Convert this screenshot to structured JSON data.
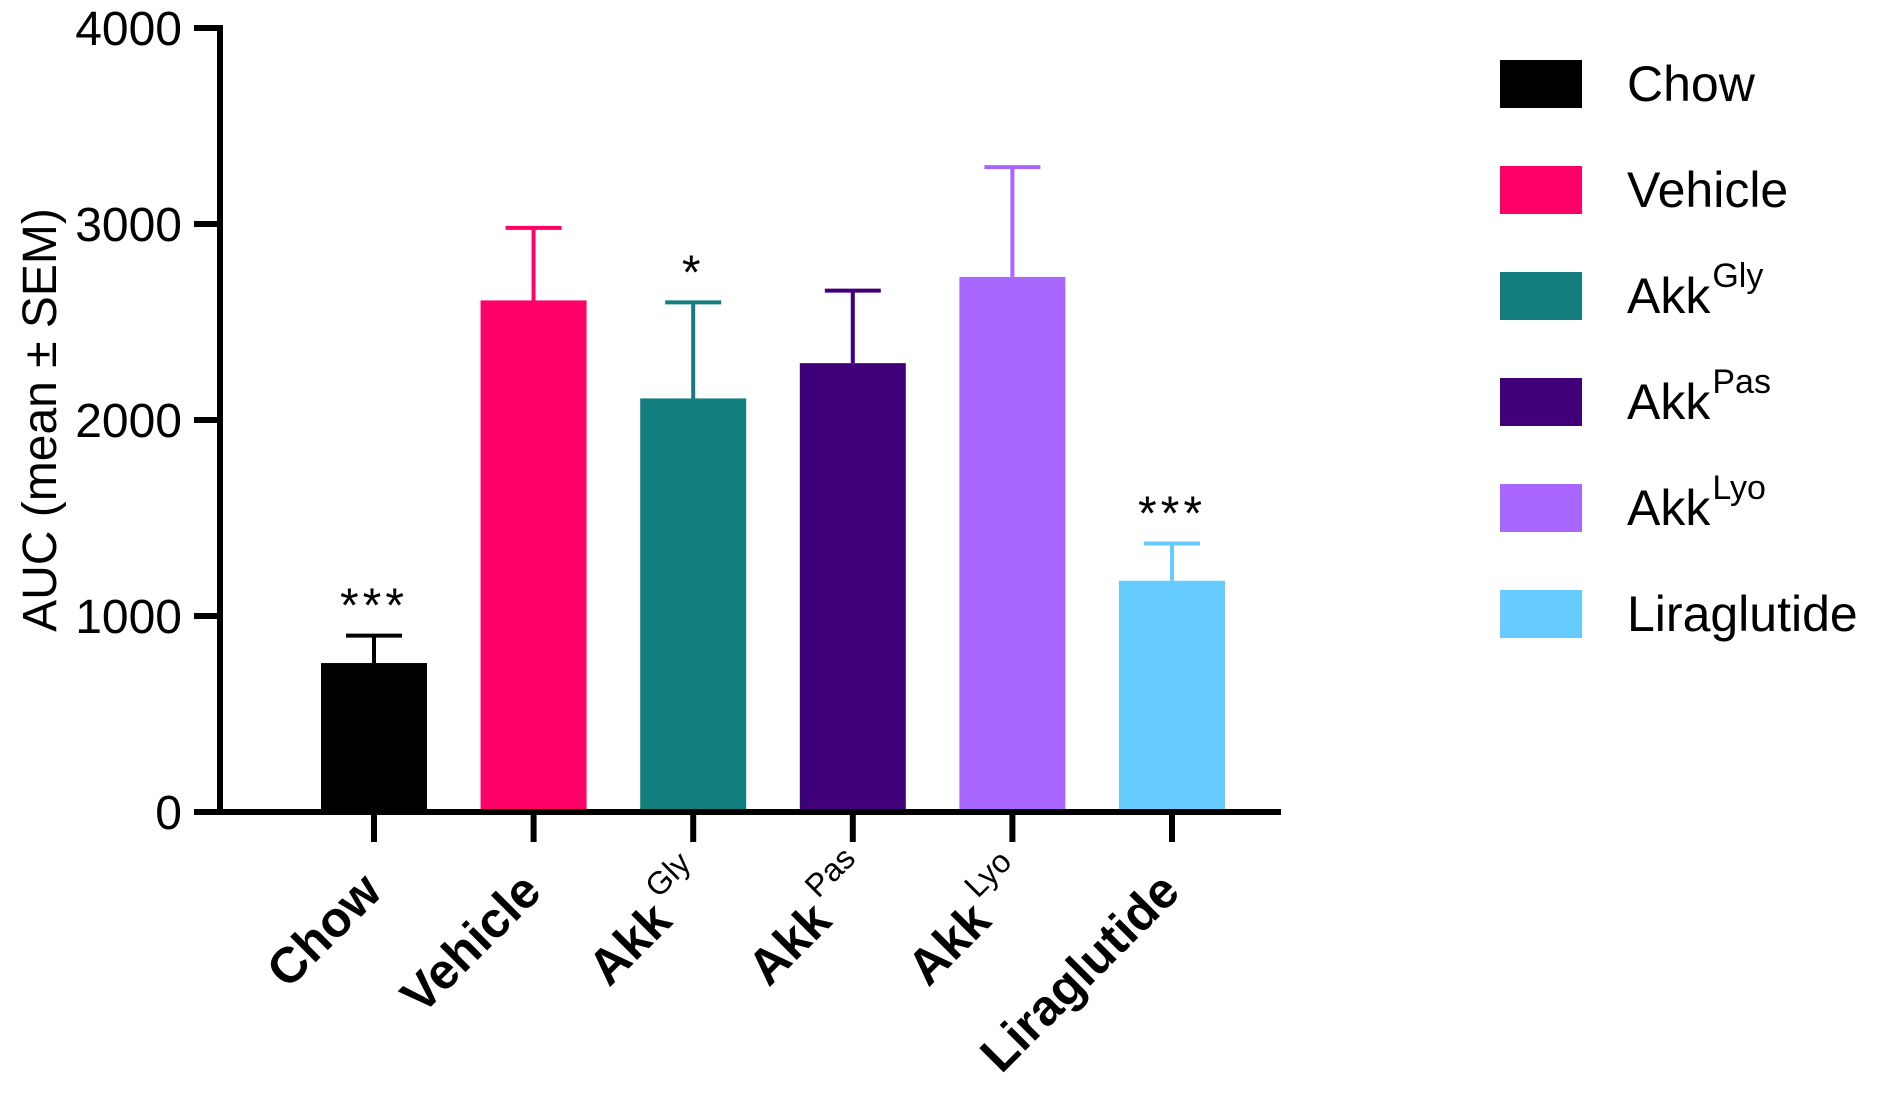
{
  "chart_data": {
    "type": "bar",
    "categories": [
      "Chow",
      "Vehicle",
      "Akk",
      "Akk",
      "Akk",
      "Liraglutide"
    ],
    "category_superscripts": [
      "",
      "",
      "Gly",
      "Pas",
      "Lyo",
      ""
    ],
    "values": [
      760,
      2610,
      2110,
      2290,
      2730,
      1180
    ],
    "error_upper": [
      900,
      2980,
      2600,
      2660,
      3290,
      1370
    ],
    "significance": [
      "***",
      "",
      "*",
      "",
      "",
      "***"
    ],
    "colors": [
      "#000000",
      "#FF0066",
      "#127E7E",
      "#3F007A",
      "#A966FF",
      "#66CCFF"
    ],
    "title": "",
    "xlabel": "",
    "ylabel": "AUC (mean ± SEM)",
    "ylim": [
      0,
      4000
    ],
    "yticks": [
      0,
      1000,
      2000,
      3000,
      4000
    ],
    "ytick_labels": [
      "0",
      "1000",
      "2000",
      "3000",
      "4000"
    ],
    "grid": false,
    "legend_position": "right",
    "legend": [
      {
        "label": "Chow",
        "sup": "",
        "color": "#000000"
      },
      {
        "label": "Vehicle",
        "sup": "",
        "color": "#FF0066"
      },
      {
        "label": "Akk",
        "sup": "Gly",
        "color": "#127E7E"
      },
      {
        "label": "Akk",
        "sup": "Pas",
        "color": "#3F007A"
      },
      {
        "label": "Akk",
        "sup": "Lyo",
        "color": "#A966FF"
      },
      {
        "label": "Liraglutide",
        "sup": "",
        "color": "#66CCFF"
      }
    ]
  }
}
